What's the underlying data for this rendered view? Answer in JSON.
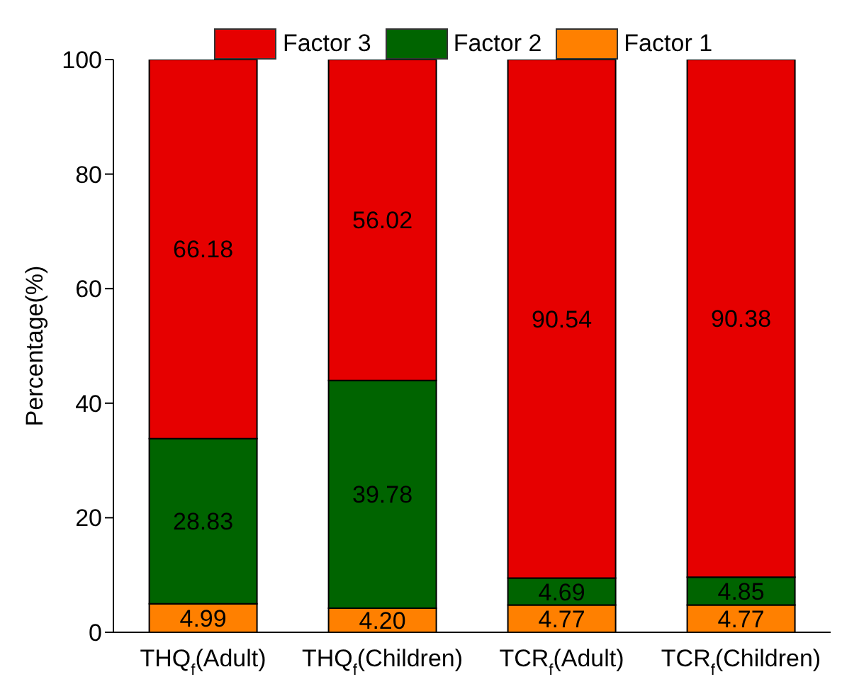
{
  "chart_data": {
    "type": "bar",
    "stacked": true,
    "ylabel": "Percentage(%)",
    "categories": [
      "THQ$_{f}$(Adult)",
      "THQ$_{f}$(Children)",
      "TCR$_{f}$(Adult)",
      "TCR$_{f}$(Children)"
    ],
    "series": [
      {
        "name": "Factor 1",
        "color": "#ff8000",
        "values": [
          4.99,
          4.2,
          4.77,
          4.77
        ],
        "value_labels": [
          "4.99",
          "4.20",
          "4.77",
          "4.77"
        ]
      },
      {
        "name": "Factor 2",
        "color": "#006400",
        "values": [
          28.83,
          39.78,
          4.69,
          4.85
        ],
        "value_labels": [
          "28.83",
          "39.78",
          "4.69",
          "4.85"
        ]
      },
      {
        "name": "Factor 3",
        "color": "#e60000",
        "values": [
          66.18,
          56.02,
          90.54,
          90.38
        ],
        "value_labels": [
          "66.18",
          "56.02",
          "90.54",
          "90.38"
        ]
      }
    ],
    "ylim": [
      0,
      100
    ],
    "yticks": [
      0,
      20,
      40,
      60,
      80,
      100
    ],
    "legend": "top"
  }
}
